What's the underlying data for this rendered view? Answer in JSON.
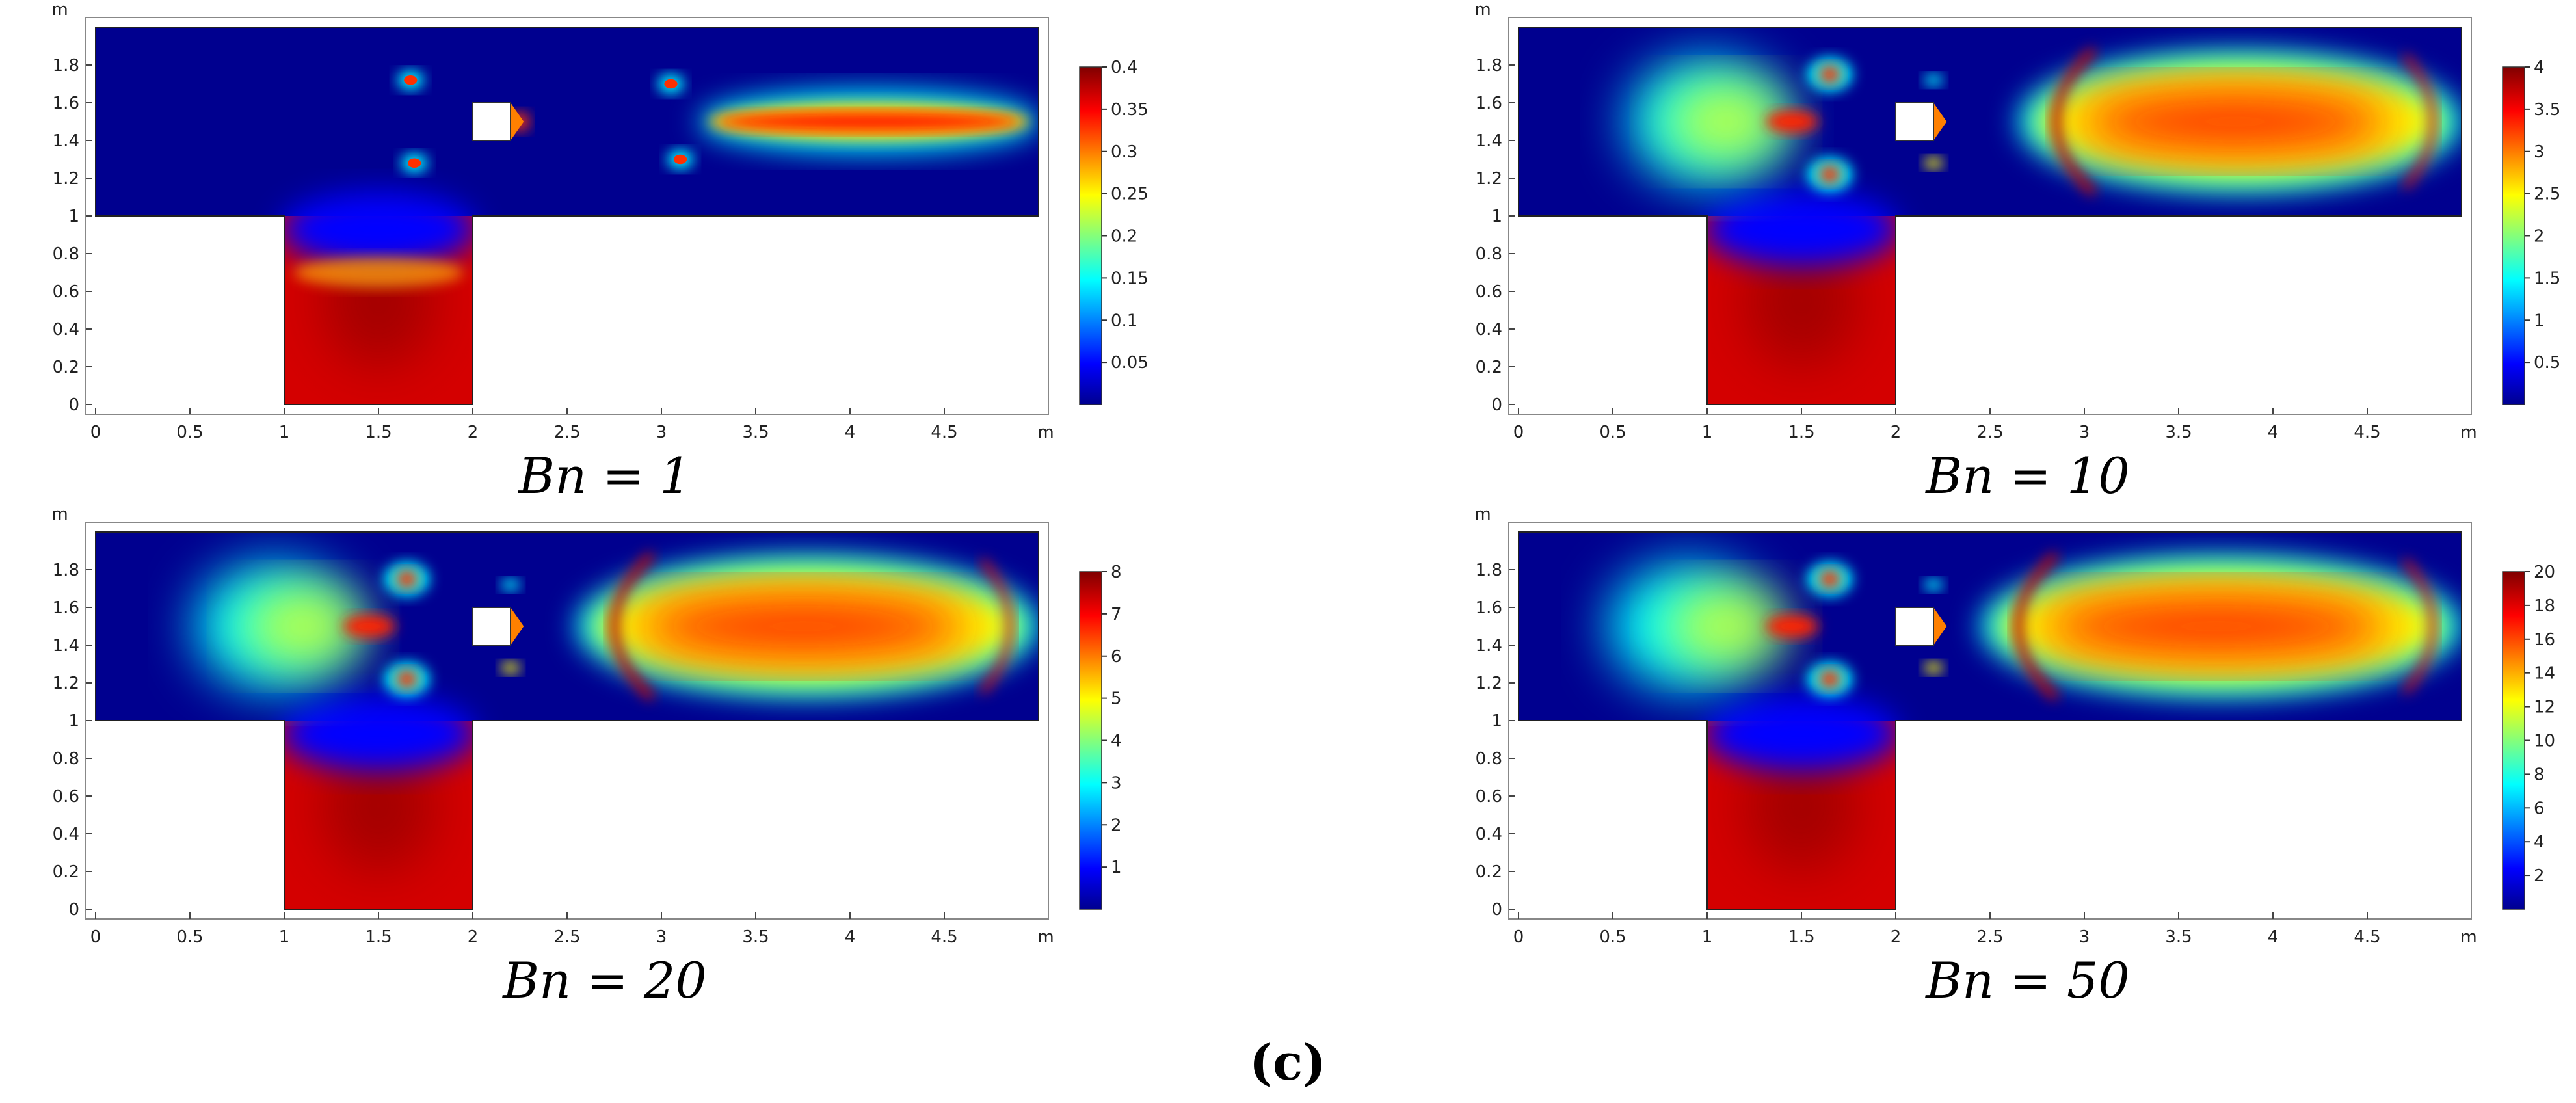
{
  "figure_label": "(c)",
  "chart_data": [
    {
      "type": "heatmap",
      "caption": "Bn = 1",
      "x_unit": "m",
      "y_unit": "m",
      "x_ticks": [
        "0",
        "0.5",
        "1",
        "1.5",
        "2",
        "2.5",
        "3",
        "3.5",
        "4",
        "4.5"
      ],
      "y_ticks": [
        "0",
        "0.2",
        "0.4",
        "0.6",
        "0.8",
        "1",
        "1.2",
        "1.4",
        "1.6",
        "1.8"
      ],
      "xlim": [
        0,
        5
      ],
      "ylim": [
        0,
        2
      ],
      "colorbar": {
        "min": 0,
        "max": 0.4,
        "ticks": [
          "0.05",
          "0.1",
          "0.15",
          "0.2",
          "0.25",
          "0.3",
          "0.35",
          "0.4"
        ]
      }
    },
    {
      "type": "heatmap",
      "caption": "Bn = 10",
      "x_unit": "m",
      "y_unit": "m",
      "x_ticks": [
        "0",
        "0.5",
        "1",
        "1.5",
        "2",
        "2.5",
        "3",
        "3.5",
        "4",
        "4.5"
      ],
      "y_ticks": [
        "0",
        "0.2",
        "0.4",
        "0.6",
        "0.8",
        "1",
        "1.2",
        "1.4",
        "1.6",
        "1.8"
      ],
      "xlim": [
        0,
        5
      ],
      "ylim": [
        0,
        2
      ],
      "colorbar": {
        "min": 0,
        "max": 4,
        "ticks": [
          "0.5",
          "1",
          "1.5",
          "2",
          "2.5",
          "3",
          "3.5",
          "4"
        ]
      }
    },
    {
      "type": "heatmap",
      "caption": "Bn = 20",
      "x_unit": "m",
      "y_unit": "m",
      "x_ticks": [
        "0",
        "0.5",
        "1",
        "1.5",
        "2",
        "2.5",
        "3",
        "3.5",
        "4",
        "4.5"
      ],
      "y_ticks": [
        "0",
        "0.2",
        "0.4",
        "0.6",
        "0.8",
        "1",
        "1.2",
        "1.4",
        "1.6",
        "1.8"
      ],
      "xlim": [
        0,
        5
      ],
      "ylim": [
        0,
        2
      ],
      "colorbar": {
        "min": 0,
        "max": 8,
        "ticks": [
          "1",
          "2",
          "3",
          "4",
          "5",
          "6",
          "7",
          "8"
        ]
      }
    },
    {
      "type": "heatmap",
      "caption": "Bn = 50",
      "x_unit": "m",
      "y_unit": "m",
      "x_ticks": [
        "0",
        "0.5",
        "1",
        "1.5",
        "2",
        "2.5",
        "3",
        "3.5",
        "4",
        "4.5"
      ],
      "y_ticks": [
        "0",
        "0.2",
        "0.4",
        "0.6",
        "0.8",
        "1",
        "1.2",
        "1.4",
        "1.6",
        "1.8"
      ],
      "xlim": [
        0,
        5
      ],
      "ylim": [
        0,
        2
      ],
      "colorbar": {
        "min": 0,
        "max": 20,
        "ticks": [
          "2",
          "4",
          "6",
          "8",
          "10",
          "12",
          "14",
          "16",
          "18",
          "20"
        ]
      }
    }
  ],
  "colormap": [
    "#00008f",
    "#0000ff",
    "#00ffff",
    "#ffff00",
    "#ff0000",
    "#800000"
  ]
}
